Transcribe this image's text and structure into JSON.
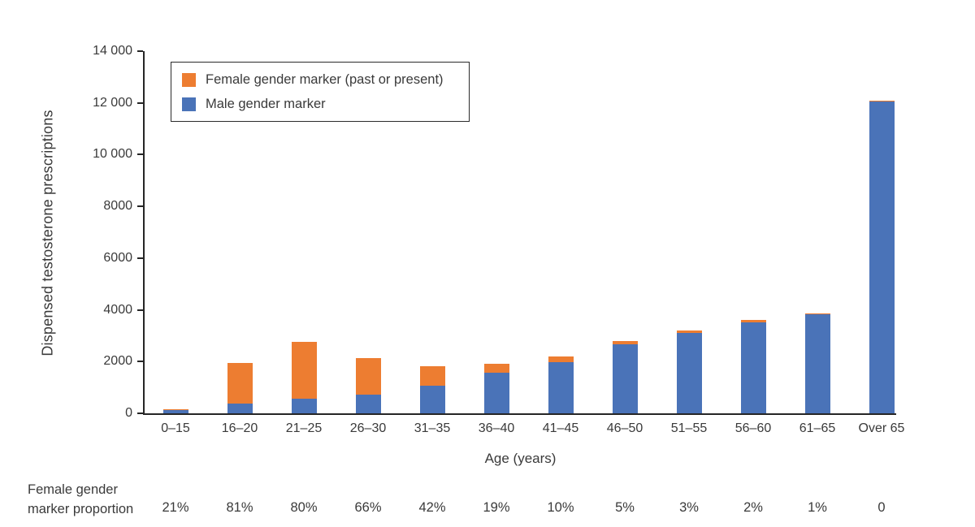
{
  "figure": {
    "y_axis_title": "Dispensed testosterone prescriptions",
    "x_axis_title": "Age (years)"
  },
  "legend": {
    "items": [
      {
        "label": "Female gender marker (past or present)",
        "color": "#ED7D31"
      },
      {
        "label": "Male gender marker",
        "color": "#4A73B8"
      }
    ]
  },
  "proportion_row": {
    "label_line1": "Female gender",
    "label_line2": "marker proportion",
    "values": [
      "21%",
      "81%",
      "80%",
      "66%",
      "42%",
      "19%",
      "10%",
      "5%",
      "3%",
      "2%",
      "1%",
      "0"
    ]
  },
  "chart_data": {
    "type": "bar",
    "stacked": true,
    "title": "",
    "xlabel": "Age (years)",
    "ylabel": "Dispensed testosterone prescriptions",
    "categories": [
      "0–15",
      "16–20",
      "21–25",
      "26–30",
      "31–35",
      "36–40",
      "41–45",
      "46–50",
      "51–55",
      "56–60",
      "61–65",
      "Over 65"
    ],
    "series": [
      {
        "name": "Male gender marker",
        "color": "#4A73B8",
        "values": [
          120,
          370,
          550,
          730,
          1060,
          1555,
          1980,
          2660,
          3100,
          3530,
          3830,
          12050
        ]
      },
      {
        "name": "Female gender marker (past or present)",
        "color": "#ED7D31",
        "values": [
          32,
          1580,
          2200,
          1420,
          770,
          365,
          220,
          140,
          100,
          70,
          40,
          50
        ]
      }
    ],
    "totals": [
      152,
      1950,
      2750,
      2150,
      1830,
      1920,
      2200,
      2800,
      3200,
      3600,
      3870,
      12100
    ],
    "female_marker_proportion": [
      "21%",
      "81%",
      "80%",
      "66%",
      "42%",
      "19%",
      "10%",
      "5%",
      "3%",
      "2%",
      "1%",
      "0"
    ],
    "ylim": [
      0,
      14000
    ],
    "y_ticks": [
      {
        "value": 0,
        "label": "0"
      },
      {
        "value": 2000,
        "label": "2000"
      },
      {
        "value": 4000,
        "label": "4000"
      },
      {
        "value": 6000,
        "label": "6000"
      },
      {
        "value": 8000,
        "label": "8000"
      },
      {
        "value": 10000,
        "label": "10 000"
      },
      {
        "value": 12000,
        "label": "12 000"
      },
      {
        "value": 14000,
        "label": "14 000"
      }
    ],
    "grid": false,
    "legend_position": "top-left-inside"
  }
}
